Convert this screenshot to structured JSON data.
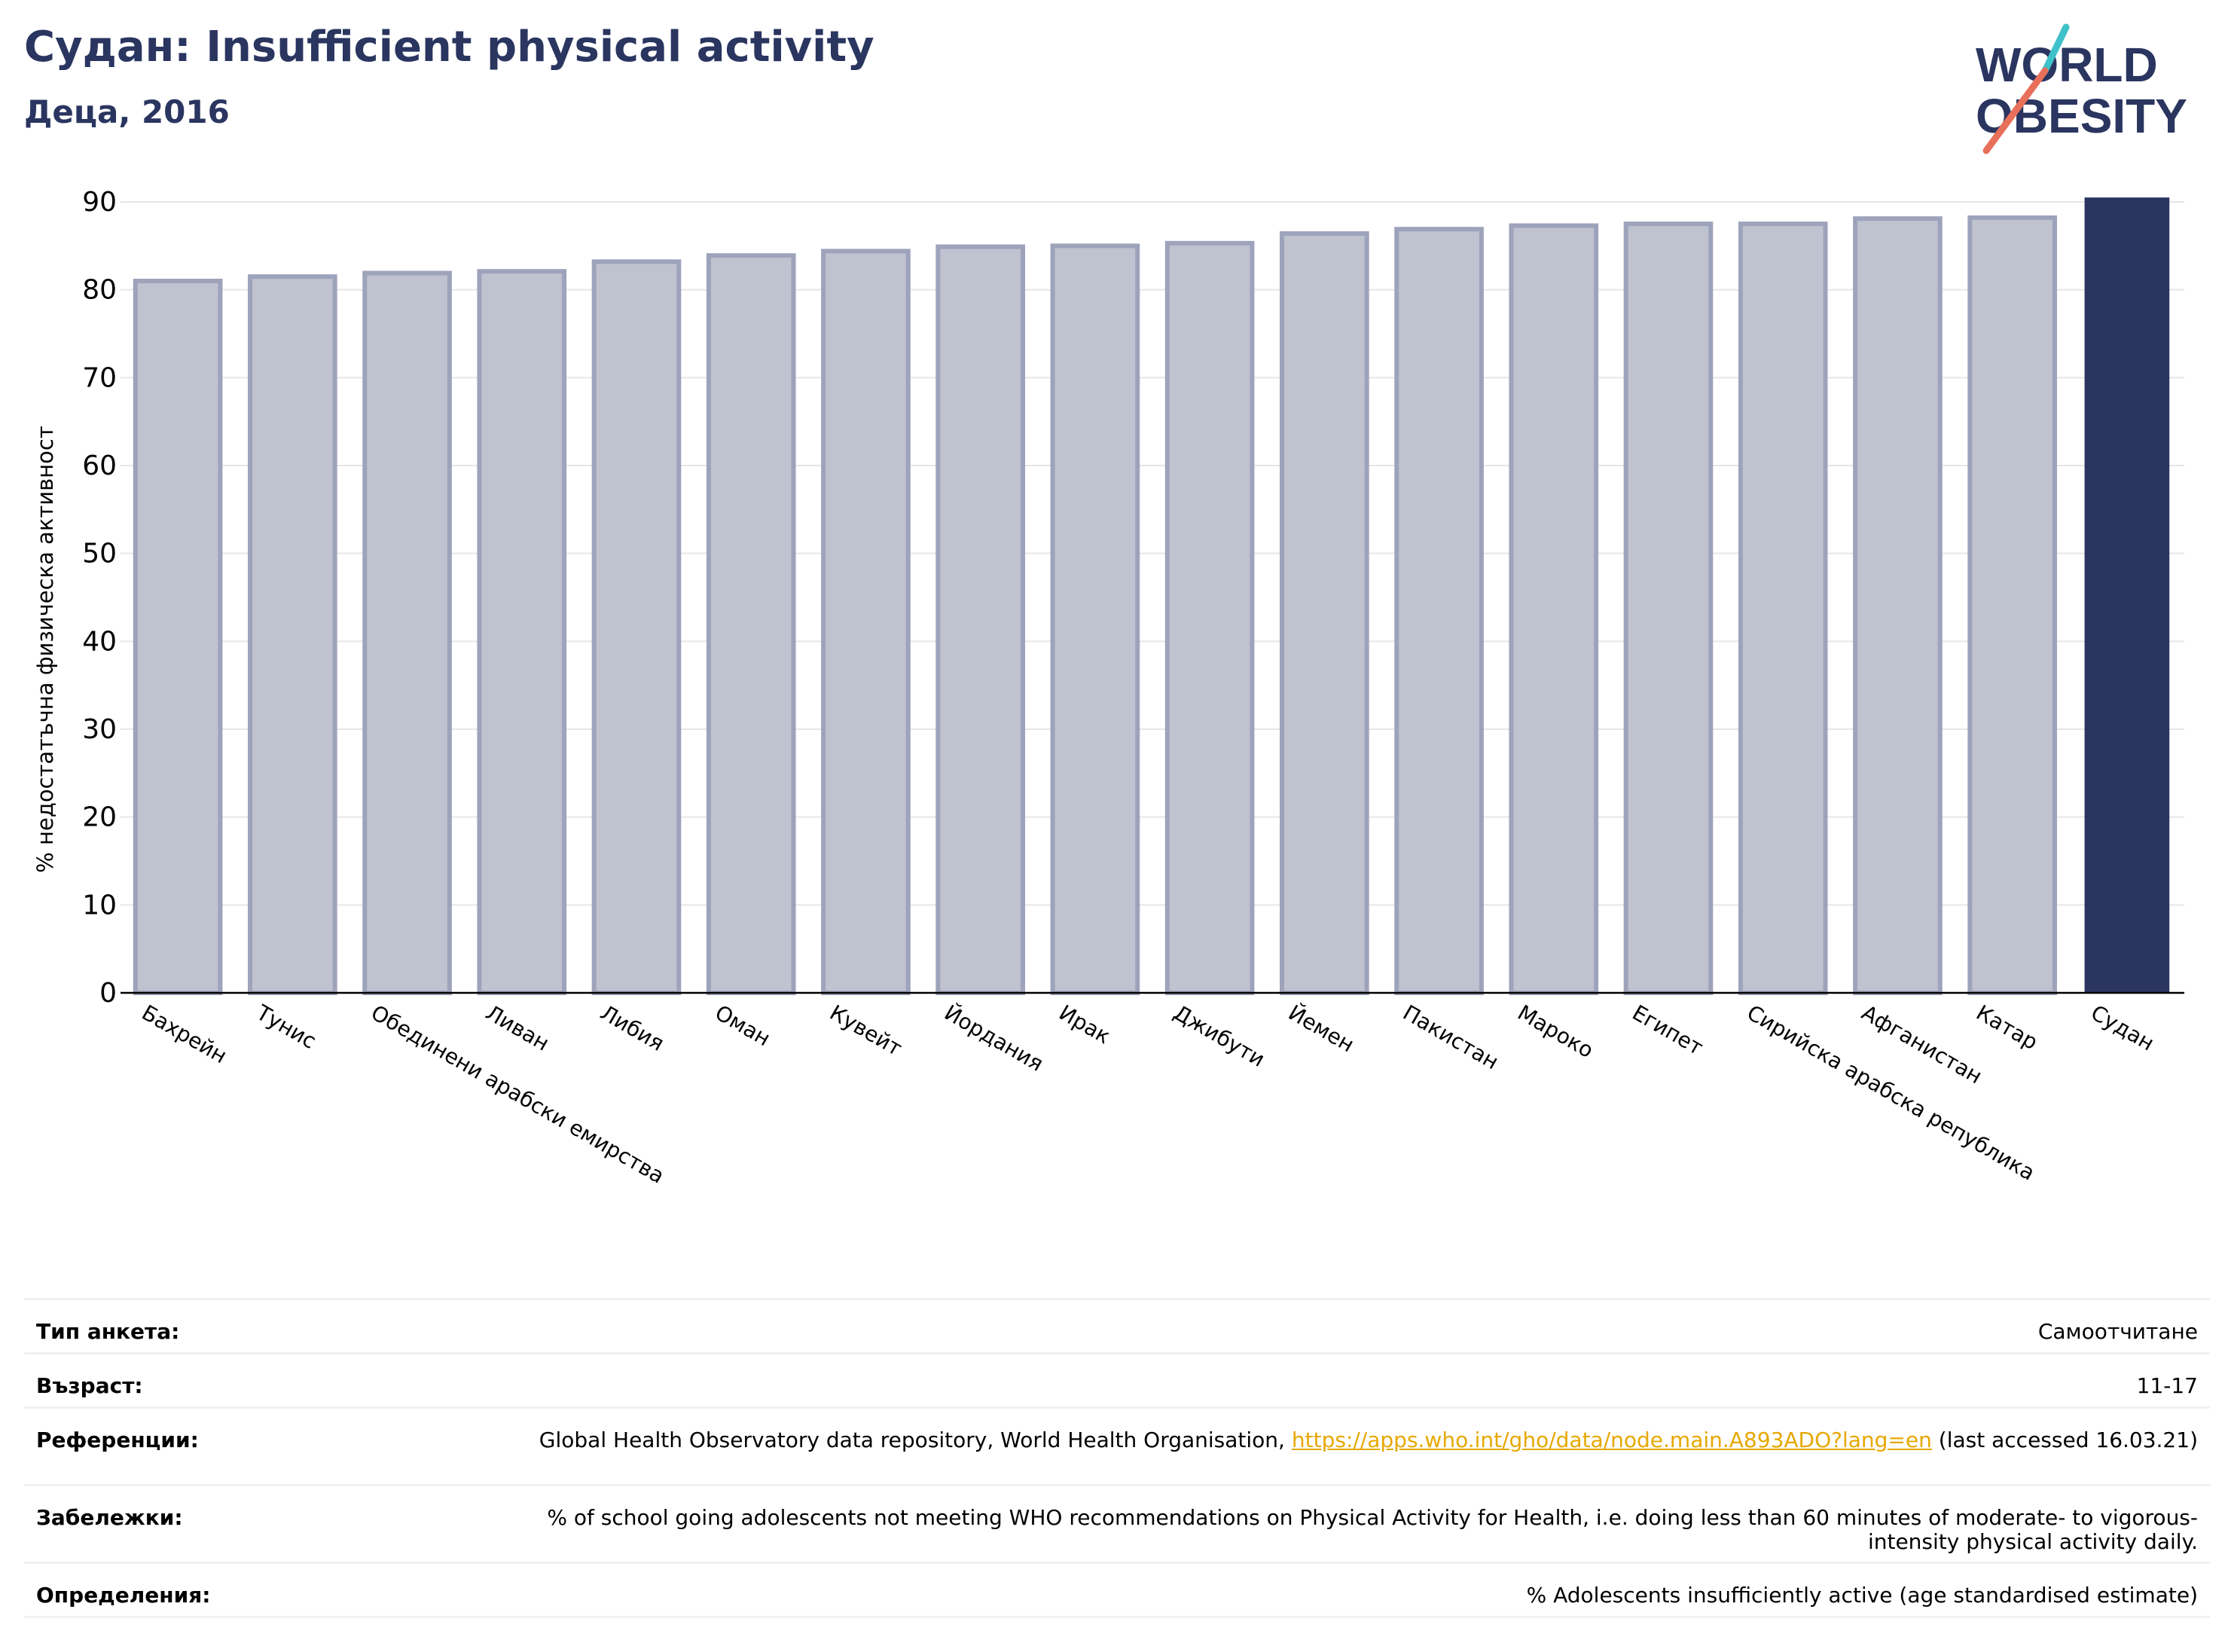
{
  "header": {
    "title": "Судан: Insufficient physical activity",
    "subtitle": "Деца, 2016"
  },
  "logo": {
    "line1": "WORLD",
    "line2": "OBESITY"
  },
  "colors": {
    "title": "#2a3560",
    "bar_fill": "#bfc2cf",
    "bar_stroke": "#9da3bb",
    "highlight": "#2a3560",
    "link": "#e6a800",
    "logo_teal": "#3fc1c9",
    "logo_coral": "#e8705a"
  },
  "chart_data": {
    "type": "bar",
    "ylabel": "% недостатъчна физическа активност",
    "ylim": [
      0,
      90
    ],
    "yticks": [
      0,
      10,
      20,
      30,
      40,
      50,
      60,
      70,
      80,
      90
    ],
    "grid": true,
    "highlight": "Судан",
    "categories": [
      "Бахрейн",
      "Тунис",
      "Обединени арабски емирства",
      "Ливан",
      "Либия",
      "Оман",
      "Кувейт",
      "Йордания",
      "Ирак",
      "Джибути",
      "Йемен",
      "Пакистан",
      "Мароко",
      "Египет",
      "Сирийска арабска република",
      "Афганистан",
      "Катар",
      "Судан"
    ],
    "values": [
      81.0,
      81.5,
      81.9,
      82.1,
      83.2,
      83.9,
      84.4,
      84.9,
      85.0,
      85.3,
      86.4,
      86.9,
      87.3,
      87.5,
      87.5,
      88.1,
      88.2,
      90.5
    ]
  },
  "info": {
    "survey_type_label": "Тип анкета:",
    "survey_type_value": "Самоотчитане",
    "age_label": "Възраст:",
    "age_value": "11-17",
    "references_label": "Референции:",
    "references_text": "Global Health Observatory data repository, World Health Organisation,",
    "references_link": "https://apps.who.int/gho/data/node.main.A893ADO?lang=en",
    "references_suffix": "(last accessed 16.03.21)",
    "notes_label": "Забележки:",
    "notes_value": "% of school going adolescents not meeting WHO recommendations on Physical Activity for Health, i.e. doing less than 60 minutes of moderate- to vigorous-intensity physical activity daily.",
    "definitions_label": "Определения:",
    "definitions_value": "% Adolescents insufficiently active (age standardised estimate)"
  }
}
